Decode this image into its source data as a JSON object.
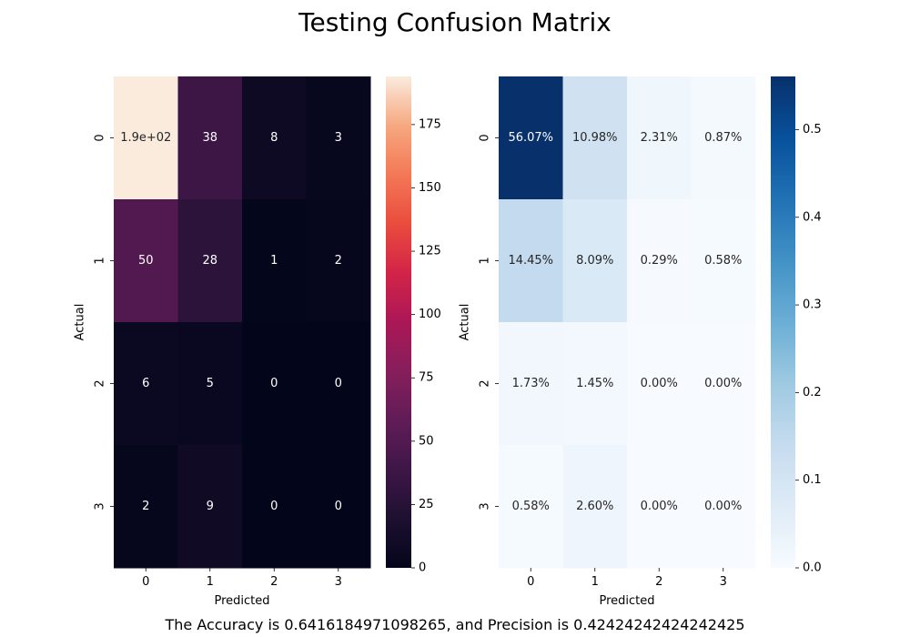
{
  "title": "Testing Confusion Matrix",
  "footer": "The Accuracy is 0.6416184971098265, and Precision is 0.42424242424242425",
  "chart_data": [
    {
      "type": "heatmap",
      "colormap": "rocket",
      "xlabel": "Predicted",
      "ylabel": "Actual",
      "x_ticks": [
        "0",
        "1",
        "2",
        "3"
      ],
      "y_ticks": [
        "0",
        "1",
        "2",
        "3"
      ],
      "values": [
        [
          194,
          38,
          8,
          3
        ],
        [
          50,
          28,
          1,
          2
        ],
        [
          6,
          5,
          0,
          0
        ],
        [
          2,
          9,
          0,
          0
        ]
      ],
      "annotations": [
        [
          "1.9e+02",
          "38",
          "8",
          "3"
        ],
        [
          "50",
          "28",
          "1",
          "2"
        ],
        [
          "6",
          "5",
          "0",
          "0"
        ],
        [
          "2",
          "9",
          "0",
          "0"
        ]
      ],
      "vmin": 0,
      "vmax": 194,
      "colorbar_ticks": [
        "0",
        "25",
        "50",
        "75",
        "100",
        "125",
        "150",
        "175"
      ]
    },
    {
      "type": "heatmap",
      "colormap": "Blues",
      "xlabel": "Predicted",
      "ylabel": "Actual",
      "x_ticks": [
        "0",
        "1",
        "2",
        "3"
      ],
      "y_ticks": [
        "0",
        "1",
        "2",
        "3"
      ],
      "values": [
        [
          0.5607,
          0.1098,
          0.0231,
          0.0087
        ],
        [
          0.1445,
          0.0809,
          0.0029,
          0.0058
        ],
        [
          0.0173,
          0.0145,
          0.0,
          0.0
        ],
        [
          0.0058,
          0.026,
          0.0,
          0.0
        ]
      ],
      "annotations": [
        [
          "56.07%",
          "10.98%",
          "2.31%",
          "0.87%"
        ],
        [
          "14.45%",
          "8.09%",
          "0.29%",
          "0.58%"
        ],
        [
          "1.73%",
          "1.45%",
          "0.00%",
          "0.00%"
        ],
        [
          "0.58%",
          "2.60%",
          "0.00%",
          "0.00%"
        ]
      ],
      "vmin": 0,
      "vmax": 0.5607,
      "colorbar_ticks": [
        "0.0",
        "0.1",
        "0.2",
        "0.3",
        "0.4",
        "0.5"
      ]
    }
  ]
}
